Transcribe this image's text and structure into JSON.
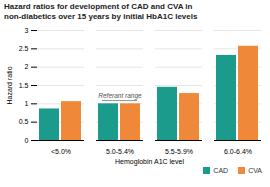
{
  "chart_data": {
    "type": "bar",
    "title": "Hazard ratios for development of CAD and CVA in",
    "subtitle": "non-diabetics over 15 years by initial HbA1C levels",
    "xlabel": "Hemoglobin A1C level",
    "ylabel": "Hazard ratio",
    "categories": [
      "<5.0%",
      "5.0-5.4%",
      "5.5-5.9%",
      "6.0-6.4%"
    ],
    "series": [
      {
        "name": "CAD",
        "color": "#1a9b8c",
        "values": [
          0.86,
          1.0,
          1.45,
          2.32
        ]
      },
      {
        "name": "CVA",
        "color": "#f0883a",
        "values": [
          1.06,
          1.0,
          1.28,
          2.57
        ]
      }
    ],
    "ylim": [
      0,
      3.0
    ],
    "yticks": [
      0,
      0.5,
      1,
      1.5,
      2,
      2.5,
      3
    ],
    "grid": true,
    "legend": "bottom",
    "annotations": [
      {
        "text": "Referant range",
        "category": "5.0-5.4%"
      }
    ]
  }
}
